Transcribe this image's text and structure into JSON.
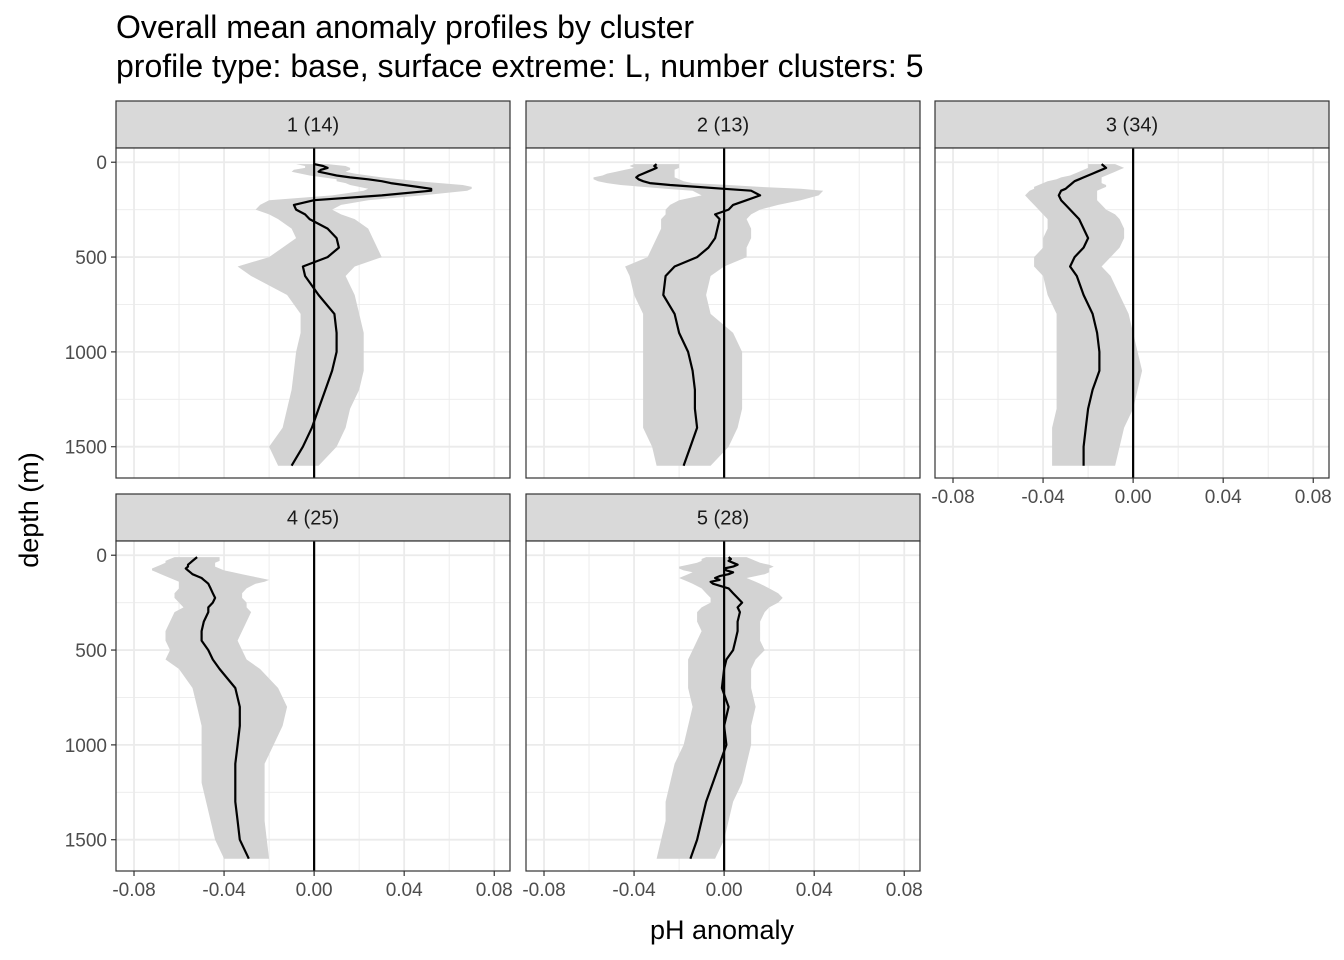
{
  "chart_data": {
    "type": "line",
    "title": "Overall mean anomaly profiles by cluster",
    "subtitle": "profile type: base, surface extreme: L, number clusters: 5",
    "xlabel": "pH anomaly",
    "ylabel": "depth (m)",
    "xlim": [
      -0.088,
      0.087
    ],
    "ylim": [
      1665,
      -75
    ],
    "y_reversed": true,
    "x_ticks": [
      -0.08,
      -0.04,
      0.0,
      0.04,
      0.08
    ],
    "x_tick_labels": [
      "-0.08",
      "-0.04",
      "0.00",
      "0.04",
      "0.08"
    ],
    "y_ticks": [
      0,
      500,
      1000,
      1500
    ],
    "y_tick_labels": [
      "0",
      "500",
      "1000",
      "1500"
    ],
    "grid": true,
    "reference_line_x": 0,
    "colors": {
      "line": "#000000",
      "ribbon": "#d3d3d3",
      "strip": "#d9d9d9",
      "grid": "#ebebeb",
      "border": "#333333"
    },
    "panels": [
      {
        "label": "1 (14)",
        "depth": [
          10,
          20,
          30,
          40,
          50,
          60,
          70,
          80,
          90,
          100,
          110,
          120,
          130,
          140,
          150,
          175,
          200,
          225,
          250,
          275,
          300,
          350,
          400,
          450,
          500,
          550,
          600,
          700,
          800,
          900,
          1000,
          1100,
          1200,
          1300,
          1400,
          1500,
          1600
        ],
        "mean": [
          0.0,
          0.004,
          0.006,
          0.003,
          0.002,
          0.006,
          0.01,
          0.016,
          0.024,
          0.03,
          0.034,
          0.04,
          0.046,
          0.052,
          0.052,
          0.03,
          0.0,
          -0.009,
          -0.008,
          -0.004,
          -0.002,
          0.006,
          0.01,
          0.011,
          0.006,
          -0.005,
          -0.004,
          0.002,
          0.009,
          0.01,
          0.01,
          0.008,
          0.005,
          0.002,
          -0.001,
          -0.005,
          -0.01
        ],
        "lower": [
          -0.008,
          -0.004,
          -0.004,
          -0.009,
          -0.01,
          -0.006,
          -0.002,
          0.004,
          0.01,
          0.01,
          0.014,
          0.016,
          0.02,
          0.024,
          0.022,
          0.008,
          -0.02,
          -0.024,
          -0.026,
          -0.02,
          -0.016,
          -0.01,
          -0.008,
          -0.014,
          -0.02,
          -0.034,
          -0.028,
          -0.012,
          -0.006,
          -0.006,
          -0.008,
          -0.009,
          -0.01,
          -0.012,
          -0.014,
          -0.02,
          -0.016
        ],
        "upper": [
          0.006,
          0.014,
          0.016,
          0.016,
          0.014,
          0.018,
          0.024,
          0.03,
          0.038,
          0.046,
          0.056,
          0.066,
          0.07,
          0.07,
          0.068,
          0.048,
          0.024,
          0.012,
          0.008,
          0.012,
          0.018,
          0.024,
          0.026,
          0.028,
          0.03,
          0.018,
          0.014,
          0.018,
          0.02,
          0.022,
          0.022,
          0.022,
          0.02,
          0.016,
          0.014,
          0.01,
          0.002
        ]
      },
      {
        "label": "2 (13)",
        "depth": [
          10,
          20,
          30,
          40,
          50,
          60,
          70,
          80,
          90,
          100,
          110,
          120,
          130,
          140,
          150,
          175,
          200,
          225,
          250,
          275,
          300,
          350,
          400,
          450,
          500,
          550,
          600,
          700,
          800,
          900,
          1000,
          1100,
          1200,
          1300,
          1400,
          1500,
          1600
        ],
        "mean": [
          -0.03,
          -0.031,
          -0.03,
          -0.032,
          -0.034,
          -0.036,
          -0.038,
          -0.039,
          -0.038,
          -0.036,
          -0.033,
          -0.024,
          -0.012,
          0.0,
          0.012,
          0.016,
          0.01,
          0.004,
          0.002,
          -0.004,
          -0.002,
          -0.003,
          -0.004,
          -0.007,
          -0.012,
          -0.022,
          -0.026,
          -0.027,
          -0.022,
          -0.02,
          -0.016,
          -0.014,
          -0.013,
          -0.013,
          -0.012,
          -0.015,
          -0.018
        ],
        "lower": [
          -0.04,
          -0.042,
          -0.04,
          -0.044,
          -0.048,
          -0.052,
          -0.054,
          -0.058,
          -0.058,
          -0.056,
          -0.052,
          -0.046,
          -0.036,
          -0.026,
          -0.014,
          -0.01,
          -0.02,
          -0.024,
          -0.026,
          -0.026,
          -0.028,
          -0.028,
          -0.03,
          -0.032,
          -0.034,
          -0.044,
          -0.042,
          -0.04,
          -0.036,
          -0.036,
          -0.036,
          -0.036,
          -0.036,
          -0.036,
          -0.036,
          -0.032,
          -0.03
        ],
        "upper": [
          -0.02,
          -0.02,
          -0.02,
          -0.022,
          -0.022,
          -0.022,
          -0.022,
          -0.022,
          -0.02,
          -0.018,
          -0.014,
          0.002,
          0.016,
          0.034,
          0.044,
          0.042,
          0.034,
          0.024,
          0.016,
          0.012,
          0.01,
          0.012,
          0.012,
          0.01,
          0.01,
          0.0,
          -0.006,
          -0.008,
          -0.006,
          0.004,
          0.008,
          0.008,
          0.008,
          0.008,
          0.006,
          0.002,
          -0.006
        ]
      },
      {
        "label": "3 (34)",
        "depth": [
          10,
          20,
          30,
          40,
          50,
          60,
          70,
          80,
          90,
          100,
          110,
          120,
          130,
          140,
          150,
          175,
          200,
          225,
          250,
          275,
          300,
          350,
          400,
          450,
          500,
          550,
          600,
          700,
          800,
          900,
          1000,
          1100,
          1200,
          1300,
          1400,
          1500,
          1600
        ],
        "mean": [
          -0.014,
          -0.013,
          -0.012,
          -0.014,
          -0.016,
          -0.018,
          -0.02,
          -0.022,
          -0.024,
          -0.026,
          -0.027,
          -0.028,
          -0.029,
          -0.03,
          -0.032,
          -0.033,
          -0.032,
          -0.03,
          -0.028,
          -0.026,
          -0.024,
          -0.022,
          -0.02,
          -0.022,
          -0.026,
          -0.028,
          -0.025,
          -0.022,
          -0.018,
          -0.016,
          -0.015,
          -0.015,
          -0.018,
          -0.02,
          -0.021,
          -0.022,
          -0.022
        ],
        "lower": [
          -0.02,
          -0.02,
          -0.02,
          -0.022,
          -0.024,
          -0.026,
          -0.028,
          -0.032,
          -0.034,
          -0.038,
          -0.04,
          -0.042,
          -0.044,
          -0.044,
          -0.046,
          -0.048,
          -0.046,
          -0.044,
          -0.042,
          -0.04,
          -0.038,
          -0.038,
          -0.04,
          -0.04,
          -0.044,
          -0.044,
          -0.04,
          -0.038,
          -0.034,
          -0.034,
          -0.034,
          -0.034,
          -0.034,
          -0.034,
          -0.036,
          -0.036,
          -0.036
        ],
        "upper": [
          -0.008,
          -0.006,
          -0.004,
          -0.006,
          -0.008,
          -0.01,
          -0.012,
          -0.014,
          -0.014,
          -0.014,
          -0.014,
          -0.012,
          -0.012,
          -0.014,
          -0.016,
          -0.016,
          -0.016,
          -0.014,
          -0.012,
          -0.008,
          -0.006,
          -0.004,
          -0.004,
          -0.006,
          -0.01,
          -0.014,
          -0.01,
          -0.006,
          -0.002,
          0.0,
          0.002,
          0.004,
          0.002,
          0.0,
          -0.004,
          -0.006,
          -0.008
        ]
      },
      {
        "label": "4 (25)",
        "depth": [
          10,
          20,
          30,
          40,
          50,
          60,
          70,
          80,
          90,
          100,
          110,
          120,
          130,
          140,
          150,
          175,
          200,
          225,
          250,
          275,
          300,
          350,
          400,
          450,
          500,
          550,
          600,
          700,
          800,
          900,
          1000,
          1100,
          1200,
          1300,
          1400,
          1500,
          1600
        ],
        "mean": [
          -0.052,
          -0.053,
          -0.054,
          -0.055,
          -0.056,
          -0.056,
          -0.057,
          -0.056,
          -0.055,
          -0.054,
          -0.052,
          -0.05,
          -0.049,
          -0.048,
          -0.047,
          -0.046,
          -0.045,
          -0.044,
          -0.045,
          -0.047,
          -0.047,
          -0.049,
          -0.05,
          -0.05,
          -0.047,
          -0.045,
          -0.042,
          -0.035,
          -0.033,
          -0.033,
          -0.034,
          -0.035,
          -0.035,
          -0.035,
          -0.034,
          -0.033,
          -0.029
        ],
        "lower": [
          -0.062,
          -0.064,
          -0.066,
          -0.066,
          -0.068,
          -0.07,
          -0.072,
          -0.072,
          -0.07,
          -0.068,
          -0.066,
          -0.064,
          -0.062,
          -0.06,
          -0.06,
          -0.06,
          -0.062,
          -0.062,
          -0.06,
          -0.058,
          -0.062,
          -0.064,
          -0.066,
          -0.066,
          -0.064,
          -0.066,
          -0.06,
          -0.054,
          -0.052,
          -0.05,
          -0.05,
          -0.05,
          -0.05,
          -0.048,
          -0.046,
          -0.044,
          -0.04
        ],
        "upper": [
          -0.042,
          -0.042,
          -0.042,
          -0.044,
          -0.044,
          -0.044,
          -0.042,
          -0.04,
          -0.036,
          -0.032,
          -0.028,
          -0.024,
          -0.02,
          -0.022,
          -0.026,
          -0.03,
          -0.032,
          -0.032,
          -0.03,
          -0.03,
          -0.028,
          -0.03,
          -0.032,
          -0.034,
          -0.032,
          -0.03,
          -0.024,
          -0.016,
          -0.012,
          -0.014,
          -0.018,
          -0.022,
          -0.022,
          -0.022,
          -0.022,
          -0.021,
          -0.02
        ]
      },
      {
        "label": "5 (28)",
        "depth": [
          10,
          20,
          30,
          40,
          50,
          60,
          70,
          80,
          90,
          100,
          110,
          120,
          130,
          140,
          150,
          175,
          200,
          225,
          250,
          275,
          300,
          350,
          400,
          450,
          500,
          550,
          600,
          700,
          800,
          900,
          1000,
          1100,
          1200,
          1300,
          1400,
          1500,
          1600
        ],
        "mean": [
          0.002,
          0.003,
          0.002,
          0.004,
          0.006,
          0.004,
          0.0,
          0.001,
          0.004,
          0.002,
          -0.002,
          -0.004,
          -0.002,
          -0.006,
          -0.005,
          0.002,
          0.004,
          0.006,
          0.008,
          0.006,
          0.007,
          0.006,
          0.006,
          0.005,
          0.004,
          0.001,
          0.0,
          -0.001,
          0.002,
          0.0,
          0.001,
          -0.002,
          -0.005,
          -0.008,
          -0.01,
          -0.012,
          -0.015
        ],
        "lower": [
          -0.008,
          -0.01,
          -0.01,
          -0.012,
          -0.016,
          -0.02,
          -0.02,
          -0.018,
          -0.014,
          -0.016,
          -0.018,
          -0.02,
          -0.018,
          -0.016,
          -0.014,
          -0.01,
          -0.008,
          -0.006,
          -0.006,
          -0.01,
          -0.012,
          -0.012,
          -0.01,
          -0.012,
          -0.014,
          -0.016,
          -0.016,
          -0.016,
          -0.014,
          -0.016,
          -0.018,
          -0.022,
          -0.024,
          -0.026,
          -0.026,
          -0.028,
          -0.03
        ],
        "upper": [
          0.01,
          0.012,
          0.014,
          0.016,
          0.02,
          0.022,
          0.02,
          0.02,
          0.02,
          0.018,
          0.014,
          0.01,
          0.012,
          0.014,
          0.016,
          0.02,
          0.024,
          0.026,
          0.024,
          0.02,
          0.018,
          0.016,
          0.016,
          0.016,
          0.018,
          0.014,
          0.012,
          0.012,
          0.014,
          0.012,
          0.012,
          0.01,
          0.008,
          0.004,
          0.002,
          0.0,
          -0.004
        ]
      }
    ]
  }
}
